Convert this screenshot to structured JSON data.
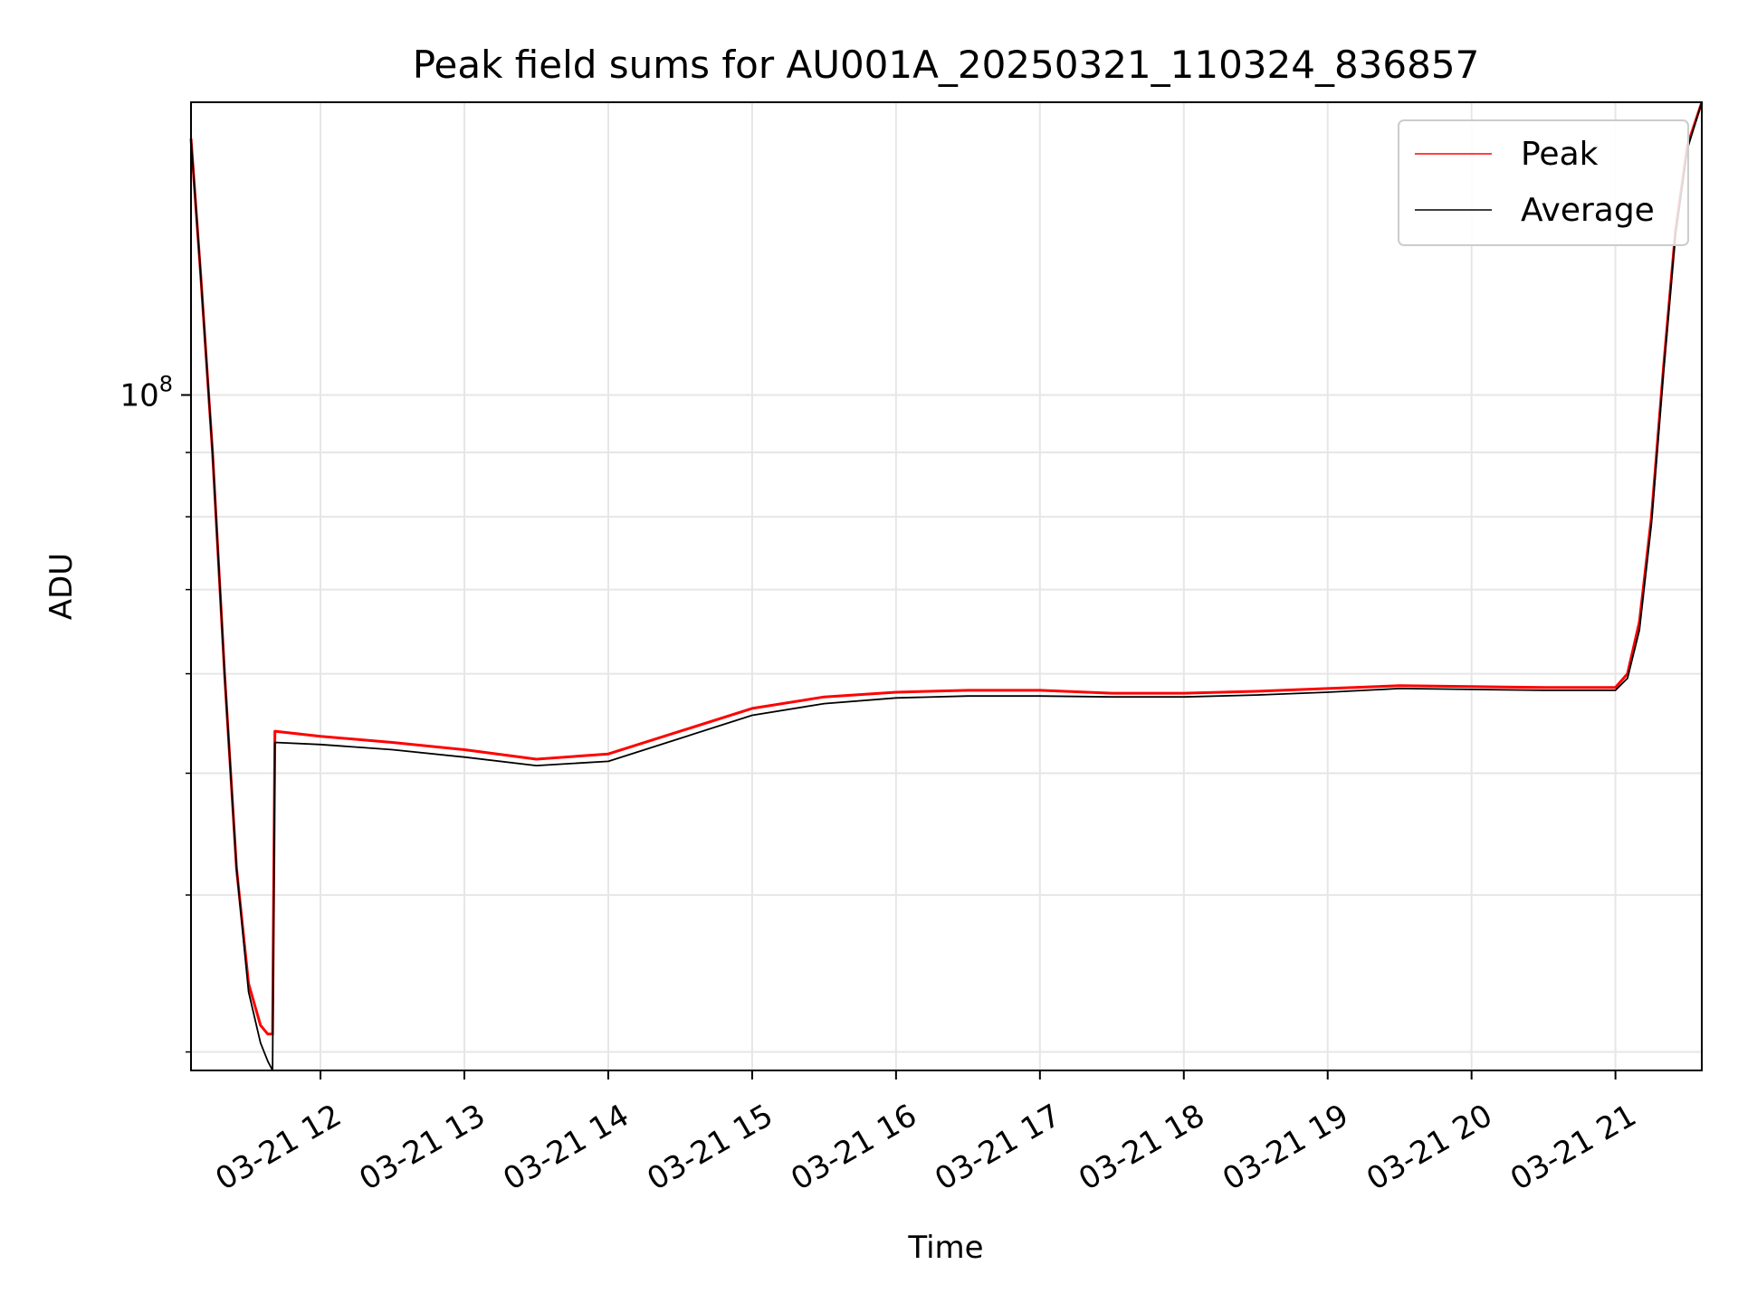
{
  "chart_data": {
    "type": "line",
    "title": "Peak field sums for AU001A_20250321_110324_836857",
    "xlabel": "Time",
    "ylabel": "ADU",
    "y_scale": "log",
    "xlim": [
      "2025-03-21 11:06",
      "2025-03-21 21:36"
    ],
    "ylim": [
      29000000,
      171000000
    ],
    "x_ticks": [
      {
        "value": "2025-03-21 12:00",
        "label": "03-21 12"
      },
      {
        "value": "2025-03-21 13:00",
        "label": "03-21 13"
      },
      {
        "value": "2025-03-21 14:00",
        "label": "03-21 14"
      },
      {
        "value": "2025-03-21 15:00",
        "label": "03-21 15"
      },
      {
        "value": "2025-03-21 16:00",
        "label": "03-21 16"
      },
      {
        "value": "2025-03-21 17:00",
        "label": "03-21 17"
      },
      {
        "value": "2025-03-21 18:00",
        "label": "03-21 18"
      },
      {
        "value": "2025-03-21 19:00",
        "label": "03-21 19"
      },
      {
        "value": "2025-03-21 20:00",
        "label": "03-21 20"
      },
      {
        "value": "2025-03-21 21:00",
        "label": "03-21 21"
      }
    ],
    "y_major_ticks": [
      {
        "value": 100000000,
        "label_base": "10",
        "label_exp": "8"
      }
    ],
    "y_minor_ticks": [
      30000000,
      40000000,
      50000000,
      60000000,
      70000000,
      80000000,
      90000000,
      200000000
    ],
    "grid": true,
    "legend_position": "top-right",
    "series": [
      {
        "name": "Peak",
        "color": "#ff0000",
        "points": [
          [
            "2025-03-21 11:06",
            160000000
          ],
          [
            "2025-03-21 11:10",
            125000000
          ],
          [
            "2025-03-21 11:15",
            90000000
          ],
          [
            "2025-03-21 11:20",
            60000000
          ],
          [
            "2025-03-21 11:25",
            42000000
          ],
          [
            "2025-03-21 11:30",
            34000000
          ],
          [
            "2025-03-21 11:35",
            31500000
          ],
          [
            "2025-03-21 11:38",
            31000000
          ],
          [
            "2025-03-21 11:40",
            31000000
          ],
          [
            "2025-03-21 11:41",
            54000000
          ],
          [
            "2025-03-21 12:00",
            53500000
          ],
          [
            "2025-03-21 12:30",
            52900000
          ],
          [
            "2025-03-21 13:00",
            52200000
          ],
          [
            "2025-03-21 13:30",
            51300000
          ],
          [
            "2025-03-21 14:00",
            51800000
          ],
          [
            "2025-03-21 14:30",
            54000000
          ],
          [
            "2025-03-21 15:00",
            56300000
          ],
          [
            "2025-03-21 15:30",
            57500000
          ],
          [
            "2025-03-21 16:00",
            58000000
          ],
          [
            "2025-03-21 16:30",
            58200000
          ],
          [
            "2025-03-21 17:00",
            58200000
          ],
          [
            "2025-03-21 17:30",
            57900000
          ],
          [
            "2025-03-21 18:00",
            57900000
          ],
          [
            "2025-03-21 18:30",
            58100000
          ],
          [
            "2025-03-21 19:00",
            58400000
          ],
          [
            "2025-03-21 19:30",
            58700000
          ],
          [
            "2025-03-21 20:00",
            58600000
          ],
          [
            "2025-03-21 20:30",
            58500000
          ],
          [
            "2025-03-21 21:00",
            58500000
          ],
          [
            "2025-03-21 21:05",
            60000000
          ],
          [
            "2025-03-21 21:10",
            66000000
          ],
          [
            "2025-03-21 21:15",
            80000000
          ],
          [
            "2025-03-21 21:20",
            105000000
          ],
          [
            "2025-03-21 21:25",
            135000000
          ],
          [
            "2025-03-21 21:30",
            158000000
          ],
          [
            "2025-03-21 21:36",
            171000000
          ]
        ]
      },
      {
        "name": "Average",
        "color": "#000000",
        "points": [
          [
            "2025-03-21 11:06",
            160000000
          ],
          [
            "2025-03-21 11:10",
            125000000
          ],
          [
            "2025-03-21 11:15",
            90000000
          ],
          [
            "2025-03-21 11:20",
            60000000
          ],
          [
            "2025-03-21 11:25",
            42000000
          ],
          [
            "2025-03-21 11:30",
            33500000
          ],
          [
            "2025-03-21 11:35",
            30500000
          ],
          [
            "2025-03-21 11:38",
            29500000
          ],
          [
            "2025-03-21 11:40",
            29000000
          ],
          [
            "2025-03-21 11:41",
            52900000
          ],
          [
            "2025-03-21 12:00",
            52700000
          ],
          [
            "2025-03-21 12:30",
            52200000
          ],
          [
            "2025-03-21 13:00",
            51500000
          ],
          [
            "2025-03-21 13:30",
            50700000
          ],
          [
            "2025-03-21 14:00",
            51100000
          ],
          [
            "2025-03-21 14:30",
            53300000
          ],
          [
            "2025-03-21 15:00",
            55600000
          ],
          [
            "2025-03-21 15:30",
            56800000
          ],
          [
            "2025-03-21 16:00",
            57400000
          ],
          [
            "2025-03-21 16:30",
            57600000
          ],
          [
            "2025-03-21 17:00",
            57600000
          ],
          [
            "2025-03-21 17:30",
            57500000
          ],
          [
            "2025-03-21 18:00",
            57500000
          ],
          [
            "2025-03-21 18:30",
            57700000
          ],
          [
            "2025-03-21 19:00",
            58000000
          ],
          [
            "2025-03-21 19:30",
            58400000
          ],
          [
            "2025-03-21 20:00",
            58300000
          ],
          [
            "2025-03-21 20:30",
            58200000
          ],
          [
            "2025-03-21 21:00",
            58200000
          ],
          [
            "2025-03-21 21:05",
            59500000
          ],
          [
            "2025-03-21 21:10",
            65000000
          ],
          [
            "2025-03-21 21:15",
            79000000
          ],
          [
            "2025-03-21 21:20",
            104000000
          ],
          [
            "2025-03-21 21:25",
            134000000
          ],
          [
            "2025-03-21 21:30",
            157000000
          ],
          [
            "2025-03-21 21:36",
            171000000
          ]
        ]
      }
    ]
  }
}
